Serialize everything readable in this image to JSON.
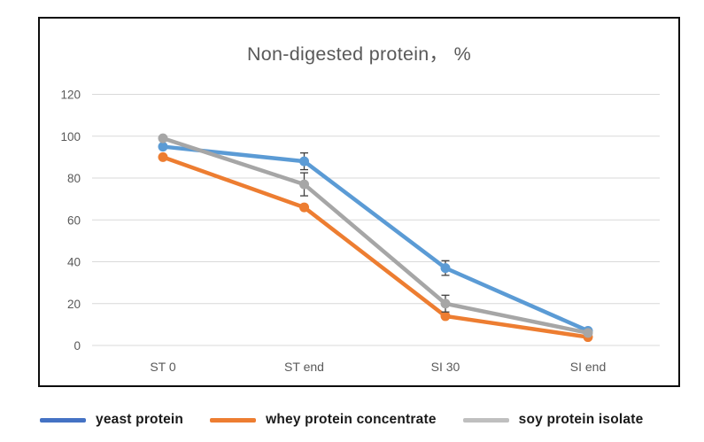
{
  "colors": {
    "background": "#FFFFFF",
    "frame_border": "#0D0D0D",
    "gridline": "#D9D9D9",
    "title_text": "#595959",
    "axis_text": "#595959",
    "error_bar": "#404040",
    "legend_text": "#1A1A1A"
  },
  "chart_data": {
    "type": "line",
    "title": "Non-digested protein， %",
    "categories": [
      "ST 0",
      "ST end",
      "SI 30",
      "SI end"
    ],
    "series": [
      {
        "name": "yeast protein",
        "color": "#5B9BD5",
        "legend_color": "#4472C4",
        "values": [
          95,
          88,
          37,
          7
        ],
        "errors": [
          0,
          4,
          3.5,
          0
        ]
      },
      {
        "name": "whey protein concentrate",
        "color": "#ED7D31",
        "legend_color": "#ED7D31",
        "values": [
          90,
          66,
          14,
          4
        ],
        "errors": [
          0,
          0,
          0,
          0
        ]
      },
      {
        "name": "soy protein isolate",
        "color": "#A6A6A6",
        "legend_color": "#BFBFBF",
        "values": [
          99,
          77,
          20,
          6
        ],
        "errors": [
          0,
          5.5,
          4,
          0
        ]
      }
    ],
    "yticks": [
      0,
      20,
      40,
      60,
      80,
      100,
      120
    ],
    "ylim": [
      0,
      120
    ],
    "xlabel": "",
    "ylabel": "",
    "grid": true,
    "legend_position": "bottom",
    "marker": "circle"
  }
}
